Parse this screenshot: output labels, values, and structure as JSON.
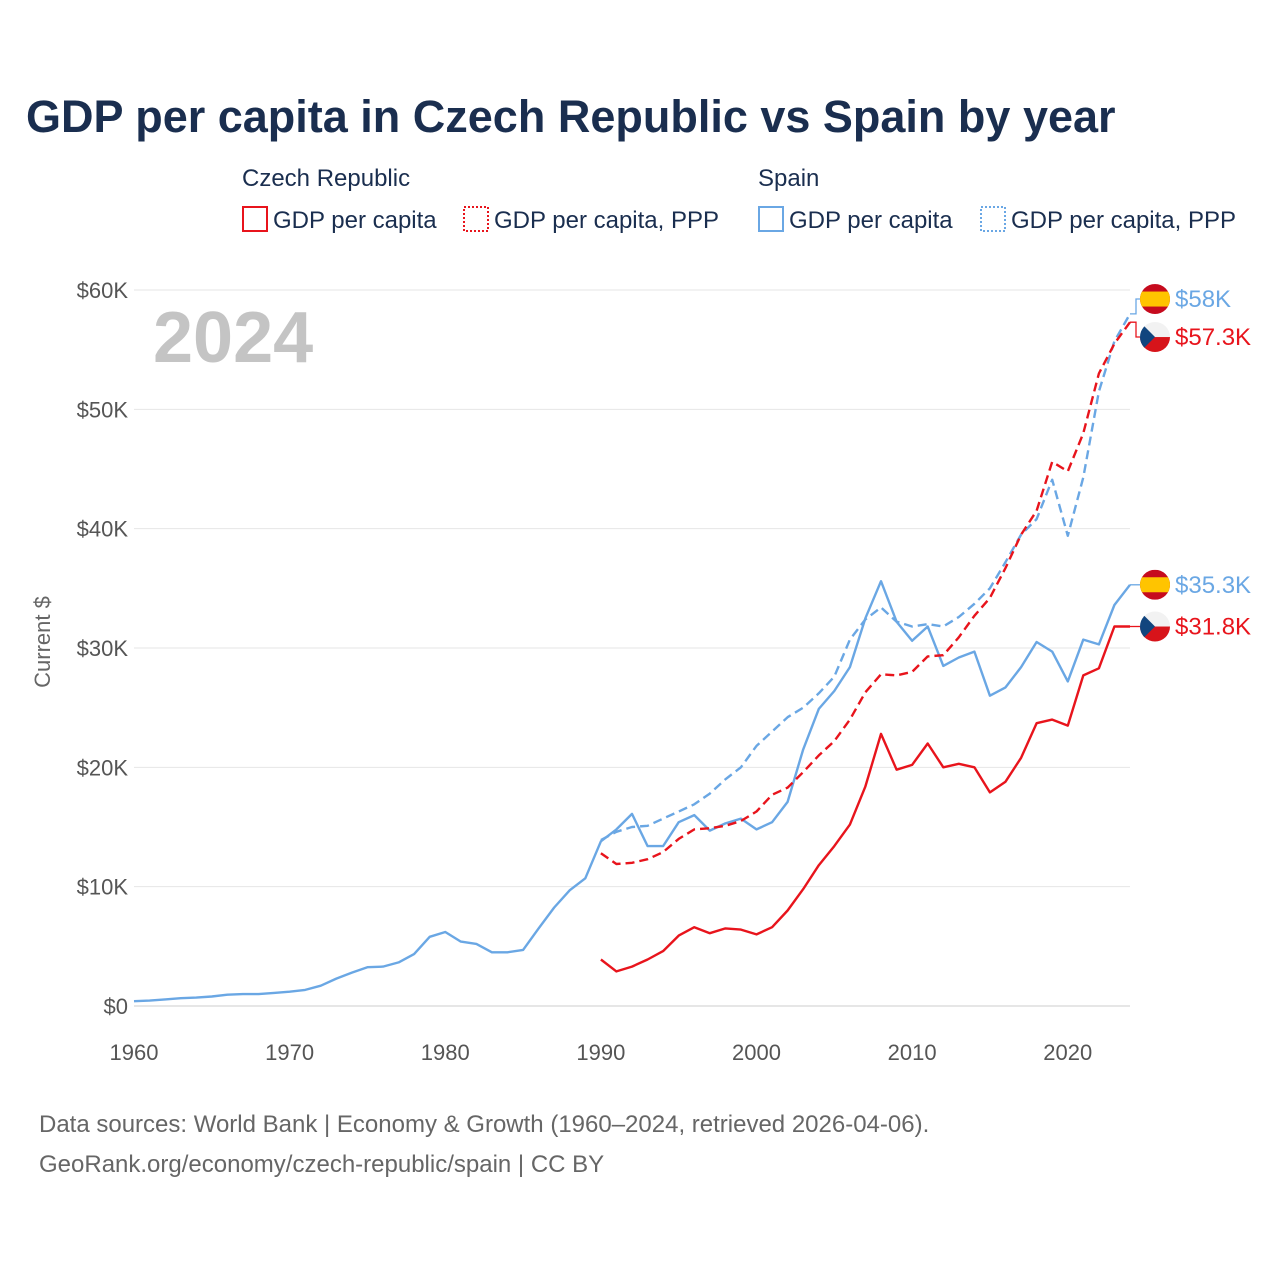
{
  "chart_data": {
    "type": "line",
    "title": "GDP per capita in Czech Republic vs Spain by year",
    "ylabel": "Current $",
    "xlabel": "",
    "ylim": [
      0,
      60000
    ],
    "xlim": [
      1960,
      2024
    ],
    "year_label": "2024",
    "y_ticks": [
      {
        "value": 0,
        "label": "$0"
      },
      {
        "value": 10000,
        "label": "$10K"
      },
      {
        "value": 20000,
        "label": "$20K"
      },
      {
        "value": 30000,
        "label": "$30K"
      },
      {
        "value": 40000,
        "label": "$40K"
      },
      {
        "value": 50000,
        "label": "$50K"
      },
      {
        "value": 60000,
        "label": "$60K"
      }
    ],
    "x_ticks": [
      {
        "value": 1960,
        "label": "1960"
      },
      {
        "value": 1970,
        "label": "1970"
      },
      {
        "value": 1980,
        "label": "1980"
      },
      {
        "value": 1990,
        "label": "1990"
      },
      {
        "value": 2000,
        "label": "2000"
      },
      {
        "value": 2010,
        "label": "2010"
      },
      {
        "value": 2020,
        "label": "2020"
      }
    ],
    "legend": {
      "groups": [
        {
          "country": "Czech Republic",
          "items": [
            "GDP per capita",
            "GDP per capita, PPP"
          ]
        },
        {
          "country": "Spain",
          "items": [
            "GDP per capita",
            "GDP per capita, PPP"
          ]
        }
      ]
    },
    "series": [
      {
        "name": "Spain GDP per capita",
        "country": "Spain",
        "style": "solid",
        "color": "#6aa7e4",
        "end_label": "$35.3K",
        "x": [
          1960,
          1961,
          1962,
          1963,
          1964,
          1965,
          1966,
          1967,
          1968,
          1969,
          1970,
          1971,
          1972,
          1973,
          1974,
          1975,
          1976,
          1977,
          1978,
          1979,
          1980,
          1981,
          1982,
          1983,
          1984,
          1985,
          1986,
          1987,
          1988,
          1989,
          1990,
          1991,
          1992,
          1993,
          1994,
          1995,
          1996,
          1997,
          1998,
          1999,
          2000,
          2001,
          2002,
          2003,
          2004,
          2005,
          2006,
          2007,
          2008,
          2009,
          2010,
          2011,
          2012,
          2013,
          2014,
          2015,
          2016,
          2017,
          2018,
          2019,
          2020,
          2021,
          2022,
          2023,
          2024
        ],
        "values": [
          400,
          450,
          550,
          650,
          700,
          800,
          950,
          1000,
          1000,
          1100,
          1200,
          1350,
          1700,
          2300,
          2800,
          3250,
          3300,
          3650,
          4350,
          5800,
          6200,
          5400,
          5200,
          4500,
          4500,
          4700,
          6500,
          8250,
          9700,
          10700,
          13800,
          14800,
          16100,
          13400,
          13400,
          15400,
          16000,
          14700,
          15300,
          15700,
          14800,
          15400,
          17100,
          21500,
          24900,
          26400,
          28400,
          32500,
          35600,
          32200,
          30600,
          31800,
          28500,
          29200,
          29700,
          26000,
          26700,
          28400,
          30500,
          29700,
          27200,
          30700,
          30300,
          33600,
          35300
        ]
      },
      {
        "name": "Spain GDP per capita, PPP",
        "country": "Spain",
        "style": "dashed",
        "color": "#6aa7e4",
        "end_label": "$58K",
        "x": [
          1990,
          1991,
          1992,
          1993,
          1994,
          1995,
          1996,
          1997,
          1998,
          1999,
          2000,
          2001,
          2002,
          2003,
          2004,
          2005,
          2006,
          2007,
          2008,
          2009,
          2010,
          2011,
          2012,
          2013,
          2014,
          2015,
          2016,
          2017,
          2018,
          2019,
          2020,
          2021,
          2022,
          2023,
          2024
        ],
        "values": [
          13900,
          14600,
          15000,
          15100,
          15700,
          16300,
          16900,
          17800,
          19000,
          20000,
          21800,
          23000,
          24200,
          25000,
          26200,
          27600,
          30700,
          32400,
          33400,
          32200,
          31800,
          32000,
          31800,
          32600,
          33700,
          35000,
          37200,
          39500,
          40800,
          44100,
          39400,
          44300,
          51500,
          55700,
          58000
        ]
      },
      {
        "name": "Czech Republic GDP per capita",
        "country": "Czech Republic",
        "style": "solid",
        "color": "#e8141c",
        "end_label": "$31.8K",
        "x": [
          1990,
          1991,
          1992,
          1993,
          1994,
          1995,
          1996,
          1997,
          1998,
          1999,
          2000,
          2001,
          2002,
          2003,
          2004,
          2005,
          2006,
          2007,
          2008,
          2009,
          2010,
          2011,
          2012,
          2013,
          2014,
          2015,
          2016,
          2017,
          2018,
          2019,
          2020,
          2021,
          2022,
          2023,
          2024
        ],
        "values": [
          3900,
          2900,
          3300,
          3900,
          4600,
          5900,
          6600,
          6100,
          6500,
          6400,
          6000,
          6600,
          8000,
          9800,
          11800,
          13400,
          15200,
          18400,
          22800,
          19800,
          20200,
          22000,
          20000,
          20300,
          20000,
          17900,
          18800,
          20800,
          23700,
          24000,
          23500,
          27700,
          28300,
          31800,
          31800
        ]
      },
      {
        "name": "Czech Republic GDP per capita, PPP",
        "country": "Czech Republic",
        "style": "dashed",
        "color": "#e8141c",
        "end_label": "$57.3K",
        "x": [
          1990,
          1991,
          1992,
          1993,
          1994,
          1995,
          1996,
          1997,
          1998,
          1999,
          2000,
          2001,
          2002,
          2003,
          2004,
          2005,
          2006,
          2007,
          2008,
          2009,
          2010,
          2011,
          2012,
          2013,
          2014,
          2015,
          2016,
          2017,
          2018,
          2019,
          2020,
          2021,
          2022,
          2023,
          2024
        ],
        "values": [
          12800,
          11900,
          12000,
          12300,
          12900,
          14000,
          14800,
          14900,
          15100,
          15500,
          16300,
          17700,
          18300,
          19600,
          21000,
          22200,
          24000,
          26300,
          27800,
          27700,
          28000,
          29300,
          29400,
          30900,
          32700,
          34200,
          36700,
          39500,
          41500,
          45600,
          44800,
          48000,
          53000,
          55500,
          57300
        ]
      }
    ]
  },
  "footer": {
    "line1": "Data sources: World Bank | Economy & Growth (1960–2024, retrieved 2026-04-06).",
    "line2": "GeoRank.org/economy/czech-republic/spain | CC BY"
  },
  "flags": {
    "spain": {
      "red": "#c60b1e",
      "yellow": "#ffc400"
    },
    "czech": {
      "white": "#f2f2f2",
      "red": "#d7141a",
      "blue": "#11457e"
    }
  }
}
